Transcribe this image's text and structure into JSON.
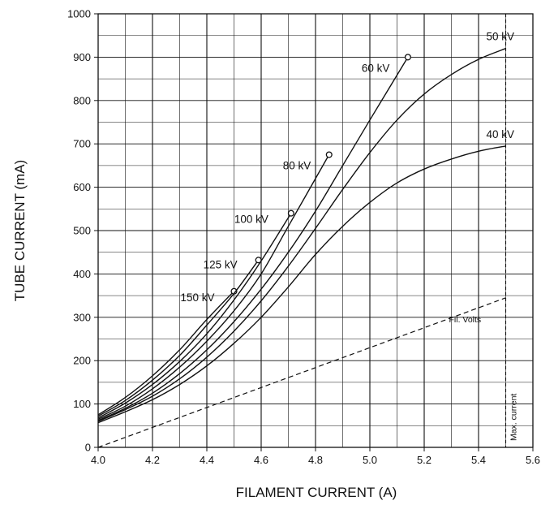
{
  "chart_data": {
    "type": "line",
    "xlabel": "FILAMENT CURRENT (A)",
    "ylabel": "TUBE CURRENT (mA)",
    "xlim": [
      4.0,
      5.6
    ],
    "ylim": [
      0,
      1000
    ],
    "xticks": [
      "4.0",
      "4.2",
      "4.4",
      "4.6",
      "4.8",
      "5.0",
      "5.2",
      "5.4",
      "5.6"
    ],
    "yticks": [
      "0",
      "100",
      "200",
      "300",
      "400",
      "500",
      "600",
      "700",
      "800",
      "900",
      "1000"
    ],
    "grid": true,
    "series": [
      {
        "name": "150 kV",
        "x": [
          4.0,
          4.1,
          4.2,
          4.3,
          4.4,
          4.5
        ],
        "y": [
          75,
          115,
          165,
          225,
          295,
          360
        ],
        "endpoint_marker": true
      },
      {
        "name": "125 kV",
        "x": [
          4.0,
          4.1,
          4.2,
          4.3,
          4.4,
          4.5,
          4.59
        ],
        "y": [
          72,
          108,
          155,
          212,
          282,
          355,
          432
        ],
        "endpoint_marker": true
      },
      {
        "name": "100 kV",
        "x": [
          4.0,
          4.1,
          4.2,
          4.3,
          4.4,
          4.5,
          4.6,
          4.71
        ],
        "y": [
          68,
          102,
          145,
          198,
          262,
          340,
          430,
          540
        ],
        "endpoint_marker": true
      },
      {
        "name": "80 kV",
        "x": [
          4.0,
          4.1,
          4.2,
          4.3,
          4.4,
          4.5,
          4.6,
          4.7,
          4.85
        ],
        "y": [
          65,
          95,
          135,
          185,
          245,
          315,
          400,
          510,
          675
        ],
        "endpoint_marker": true
      },
      {
        "name": "60 kV",
        "x": [
          4.0,
          4.1,
          4.2,
          4.3,
          4.4,
          4.5,
          4.6,
          4.7,
          4.8,
          4.9,
          5.0,
          5.14
        ],
        "y": [
          62,
          90,
          125,
          170,
          225,
          290,
          365,
          450,
          545,
          650,
          755,
          900
        ],
        "endpoint_marker": true
      },
      {
        "name": "50 kV",
        "x": [
          4.0,
          4.1,
          4.2,
          4.3,
          4.4,
          4.5,
          4.6,
          4.7,
          4.8,
          4.9,
          5.0,
          5.1,
          5.2,
          5.3,
          5.4,
          5.5
        ],
        "y": [
          60,
          87,
          118,
          158,
          208,
          268,
          338,
          418,
          505,
          595,
          680,
          755,
          815,
          860,
          895,
          920
        ],
        "endpoint_marker": false
      },
      {
        "name": "40 kV",
        "x": [
          4.0,
          4.1,
          4.2,
          4.3,
          4.4,
          4.5,
          4.6,
          4.7,
          4.8,
          4.9,
          5.0,
          5.1,
          5.2,
          5.3,
          5.4,
          5.5
        ],
        "y": [
          57,
          82,
          110,
          145,
          188,
          240,
          300,
          370,
          445,
          510,
          565,
          610,
          642,
          665,
          683,
          695
        ],
        "endpoint_marker": false
      },
      {
        "name": "Fil. Volts",
        "x": [
          4.0,
          5.5
        ],
        "y": [
          0,
          345
        ],
        "dashed": true
      }
    ],
    "vline": {
      "x": 5.5,
      "label": "Max. current",
      "dashed": true
    }
  }
}
